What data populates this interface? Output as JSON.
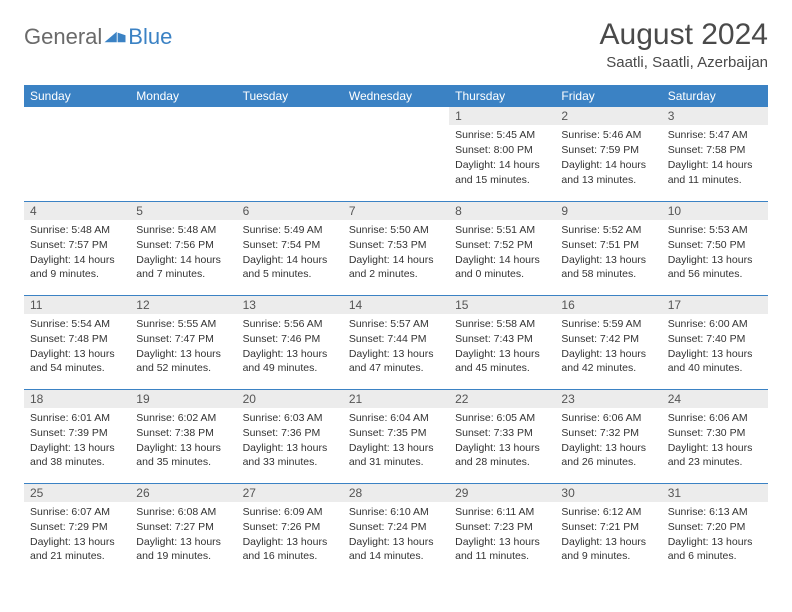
{
  "logo": {
    "text1": "General",
    "text2": "Blue",
    "icon_color": "#3b82c4"
  },
  "title": "August 2024",
  "location": "Saatli, Saatli, Azerbaijan",
  "colors": {
    "header_bg": "#3b82c4",
    "header_fg": "#ffffff",
    "daynum_bg": "#ececec",
    "rule": "#3b82c4",
    "text": "#333333",
    "title_fg": "#4a4a4a"
  },
  "weekdays": [
    "Sunday",
    "Monday",
    "Tuesday",
    "Wednesday",
    "Thursday",
    "Friday",
    "Saturday"
  ],
  "weeks": [
    [
      null,
      null,
      null,
      null,
      {
        "n": "1",
        "sr": "5:45 AM",
        "ss": "8:00 PM",
        "dl": "14 hours and 15 minutes."
      },
      {
        "n": "2",
        "sr": "5:46 AM",
        "ss": "7:59 PM",
        "dl": "14 hours and 13 minutes."
      },
      {
        "n": "3",
        "sr": "5:47 AM",
        "ss": "7:58 PM",
        "dl": "14 hours and 11 minutes."
      }
    ],
    [
      {
        "n": "4",
        "sr": "5:48 AM",
        "ss": "7:57 PM",
        "dl": "14 hours and 9 minutes."
      },
      {
        "n": "5",
        "sr": "5:48 AM",
        "ss": "7:56 PM",
        "dl": "14 hours and 7 minutes."
      },
      {
        "n": "6",
        "sr": "5:49 AM",
        "ss": "7:54 PM",
        "dl": "14 hours and 5 minutes."
      },
      {
        "n": "7",
        "sr": "5:50 AM",
        "ss": "7:53 PM",
        "dl": "14 hours and 2 minutes."
      },
      {
        "n": "8",
        "sr": "5:51 AM",
        "ss": "7:52 PM",
        "dl": "14 hours and 0 minutes."
      },
      {
        "n": "9",
        "sr": "5:52 AM",
        "ss": "7:51 PM",
        "dl": "13 hours and 58 minutes."
      },
      {
        "n": "10",
        "sr": "5:53 AM",
        "ss": "7:50 PM",
        "dl": "13 hours and 56 minutes."
      }
    ],
    [
      {
        "n": "11",
        "sr": "5:54 AM",
        "ss": "7:48 PM",
        "dl": "13 hours and 54 minutes."
      },
      {
        "n": "12",
        "sr": "5:55 AM",
        "ss": "7:47 PM",
        "dl": "13 hours and 52 minutes."
      },
      {
        "n": "13",
        "sr": "5:56 AM",
        "ss": "7:46 PM",
        "dl": "13 hours and 49 minutes."
      },
      {
        "n": "14",
        "sr": "5:57 AM",
        "ss": "7:44 PM",
        "dl": "13 hours and 47 minutes."
      },
      {
        "n": "15",
        "sr": "5:58 AM",
        "ss": "7:43 PM",
        "dl": "13 hours and 45 minutes."
      },
      {
        "n": "16",
        "sr": "5:59 AM",
        "ss": "7:42 PM",
        "dl": "13 hours and 42 minutes."
      },
      {
        "n": "17",
        "sr": "6:00 AM",
        "ss": "7:40 PM",
        "dl": "13 hours and 40 minutes."
      }
    ],
    [
      {
        "n": "18",
        "sr": "6:01 AM",
        "ss": "7:39 PM",
        "dl": "13 hours and 38 minutes."
      },
      {
        "n": "19",
        "sr": "6:02 AM",
        "ss": "7:38 PM",
        "dl": "13 hours and 35 minutes."
      },
      {
        "n": "20",
        "sr": "6:03 AM",
        "ss": "7:36 PM",
        "dl": "13 hours and 33 minutes."
      },
      {
        "n": "21",
        "sr": "6:04 AM",
        "ss": "7:35 PM",
        "dl": "13 hours and 31 minutes."
      },
      {
        "n": "22",
        "sr": "6:05 AM",
        "ss": "7:33 PM",
        "dl": "13 hours and 28 minutes."
      },
      {
        "n": "23",
        "sr": "6:06 AM",
        "ss": "7:32 PM",
        "dl": "13 hours and 26 minutes."
      },
      {
        "n": "24",
        "sr": "6:06 AM",
        "ss": "7:30 PM",
        "dl": "13 hours and 23 minutes."
      }
    ],
    [
      {
        "n": "25",
        "sr": "6:07 AM",
        "ss": "7:29 PM",
        "dl": "13 hours and 21 minutes."
      },
      {
        "n": "26",
        "sr": "6:08 AM",
        "ss": "7:27 PM",
        "dl": "13 hours and 19 minutes."
      },
      {
        "n": "27",
        "sr": "6:09 AM",
        "ss": "7:26 PM",
        "dl": "13 hours and 16 minutes."
      },
      {
        "n": "28",
        "sr": "6:10 AM",
        "ss": "7:24 PM",
        "dl": "13 hours and 14 minutes."
      },
      {
        "n": "29",
        "sr": "6:11 AM",
        "ss": "7:23 PM",
        "dl": "13 hours and 11 minutes."
      },
      {
        "n": "30",
        "sr": "6:12 AM",
        "ss": "7:21 PM",
        "dl": "13 hours and 9 minutes."
      },
      {
        "n": "31",
        "sr": "6:13 AM",
        "ss": "7:20 PM",
        "dl": "13 hours and 6 minutes."
      }
    ]
  ],
  "labels": {
    "sunrise": "Sunrise:",
    "sunset": "Sunset:",
    "daylight": "Daylight:"
  }
}
